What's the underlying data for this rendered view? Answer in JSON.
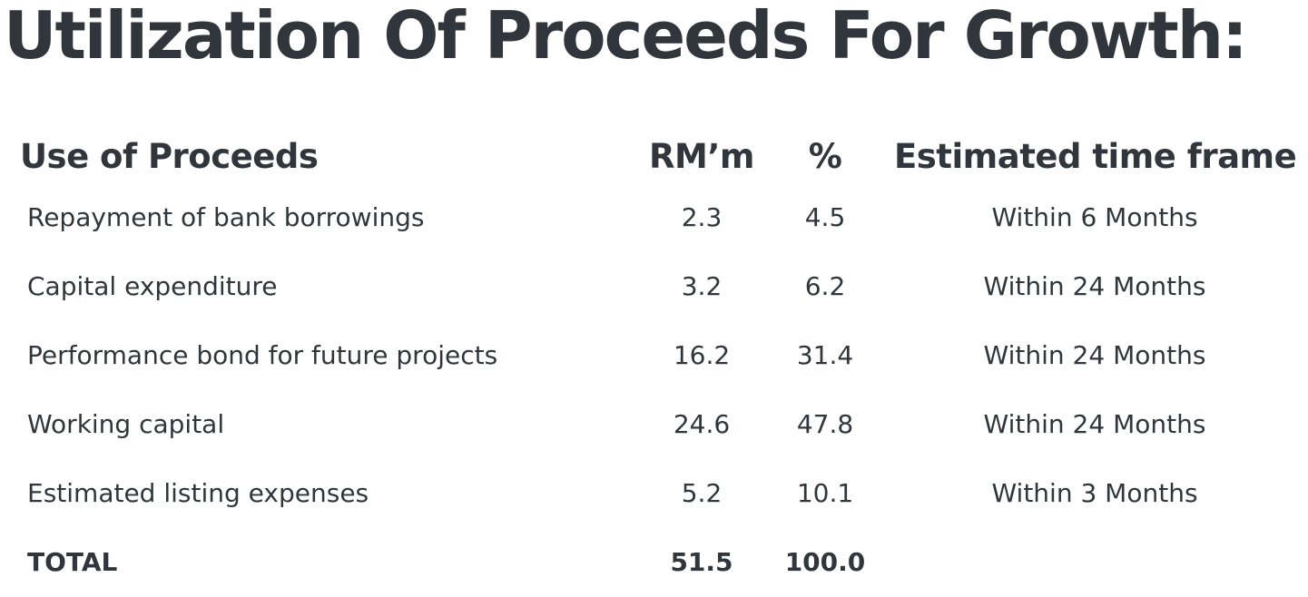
{
  "title": "Utilization Of Proceeds For Growth:",
  "table": {
    "headers": {
      "use": "Use of Proceeds",
      "rm": "RM’m",
      "pct": "%",
      "time": "Estimated time frame"
    },
    "rows": [
      {
        "use": "Repayment of bank borrowings",
        "rm": "2.3",
        "pct": "4.5",
        "time": "Within 6 Months"
      },
      {
        "use": "Capital expenditure",
        "rm": "3.2",
        "pct": "6.2",
        "time": "Within 24 Months"
      },
      {
        "use": "Performance bond for future projects",
        "rm": "16.2",
        "pct": "31.4",
        "time": "Within 24 Months"
      },
      {
        "use": "Working capital",
        "rm": "24.6",
        "pct": "47.8",
        "time": "Within 24 Months"
      },
      {
        "use": "Estimated listing expenses",
        "rm": "5.2",
        "pct": "10.1",
        "time": "Within 3 Months"
      }
    ],
    "total": {
      "label": "TOTAL",
      "rm": "51.5",
      "pct": "100.0"
    }
  }
}
